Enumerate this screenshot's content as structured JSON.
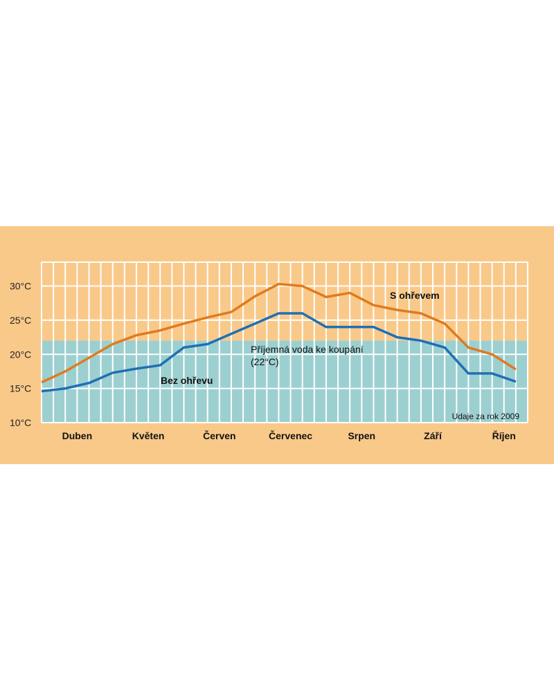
{
  "chart_data": {
    "type": "line",
    "title": "",
    "xlabel": "",
    "ylabel": "",
    "categories": [
      "Duben",
      "Květen",
      "Červen",
      "Červenec",
      "Srpen",
      "Září",
      "Říjen"
    ],
    "y_ticks": [
      "10°C",
      "15°C",
      "20°C",
      "25°C",
      "30°C"
    ],
    "ylim": [
      10,
      33.5
    ],
    "grid": true,
    "x": [
      0,
      0.5,
      1,
      1.5,
      2,
      2.5,
      3,
      3.5,
      4,
      4.5,
      5,
      5.5,
      6,
      6.5,
      7,
      7.5,
      8,
      8.5,
      9,
      9.5,
      10,
      10.5,
      11,
      11.5,
      12,
      12.5,
      13,
      13.5,
      14,
      14.5,
      15,
      15.5,
      16,
      16.5,
      17,
      17.5,
      18,
      18.5,
      19,
      19.5,
      20,
      20.5
    ],
    "series": [
      {
        "name": "S ohřevem",
        "color": "#e07b1e",
        "points": [
          [
            0,
            15.9
          ],
          [
            1,
            17.5
          ],
          [
            2,
            19.5
          ],
          [
            3,
            21.5
          ],
          [
            4,
            22.8
          ],
          [
            5,
            23.5
          ],
          [
            6,
            24.5
          ],
          [
            7,
            25.4
          ],
          [
            8,
            26.2
          ],
          [
            9,
            28.5
          ],
          [
            10,
            30.3
          ],
          [
            11,
            30.0
          ],
          [
            12,
            28.4
          ],
          [
            13,
            29.0
          ],
          [
            14,
            27.2
          ],
          [
            15,
            26.5
          ],
          [
            16,
            26.0
          ],
          [
            17,
            24.5
          ],
          [
            18,
            21.0
          ],
          [
            19,
            20.0
          ],
          [
            20,
            17.8
          ]
        ]
      },
      {
        "name": "Bez ohřevu",
        "color": "#1f6fb5",
        "points": [
          [
            0,
            14.6
          ],
          [
            1,
            15.0
          ],
          [
            2,
            15.8
          ],
          [
            3,
            17.3
          ],
          [
            4,
            17.9
          ],
          [
            5,
            18.4
          ],
          [
            6,
            21.0
          ],
          [
            7,
            21.5
          ],
          [
            8,
            23.0
          ],
          [
            9,
            24.5
          ],
          [
            10,
            26.0
          ],
          [
            11,
            26.0
          ],
          [
            12,
            24.0
          ],
          [
            13,
            24.0
          ],
          [
            14,
            24.0
          ],
          [
            15,
            22.5
          ],
          [
            16,
            22.0
          ],
          [
            17,
            21.0
          ],
          [
            18,
            17.2
          ],
          [
            19,
            17.2
          ],
          [
            20,
            16.0
          ]
        ]
      }
    ],
    "reference": {
      "value": 22,
      "label_line1": "Příjemná voda ke koupání",
      "label_line2": "(22°C)",
      "color": "#9ccfd0"
    },
    "annotation": "Udaje za rok 2009"
  }
}
